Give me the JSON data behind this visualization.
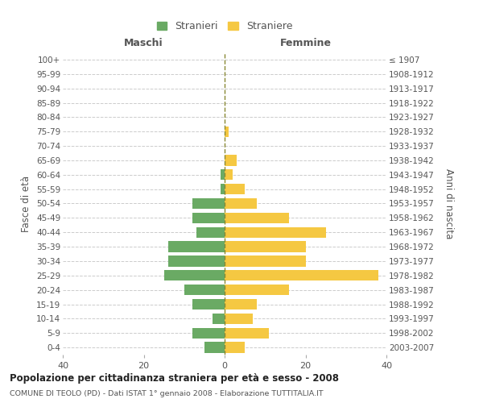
{
  "age_groups": [
    "100+",
    "95-99",
    "90-94",
    "85-89",
    "80-84",
    "75-79",
    "70-74",
    "65-69",
    "60-64",
    "55-59",
    "50-54",
    "45-49",
    "40-44",
    "35-39",
    "30-34",
    "25-29",
    "20-24",
    "15-19",
    "10-14",
    "5-9",
    "0-4"
  ],
  "birth_years": [
    "≤ 1907",
    "1908-1912",
    "1913-1917",
    "1918-1922",
    "1923-1927",
    "1928-1932",
    "1933-1937",
    "1938-1942",
    "1943-1947",
    "1948-1952",
    "1953-1957",
    "1958-1962",
    "1963-1967",
    "1968-1972",
    "1973-1977",
    "1978-1982",
    "1983-1987",
    "1988-1992",
    "1993-1997",
    "1998-2002",
    "2003-2007"
  ],
  "maschi": [
    0,
    0,
    0,
    0,
    0,
    0,
    0,
    0,
    1,
    1,
    8,
    8,
    7,
    14,
    14,
    15,
    10,
    8,
    3,
    8,
    5
  ],
  "femmine": [
    0,
    0,
    0,
    0,
    0,
    1,
    0,
    3,
    2,
    5,
    8,
    16,
    25,
    20,
    20,
    38,
    16,
    8,
    7,
    11,
    5
  ],
  "color_maschi": "#6aaa64",
  "color_femmine": "#f5c842",
  "title": "Popolazione per cittadinanza straniera per età e sesso - 2008",
  "subtitle": "COMUNE DI TEOLO (PD) - Dati ISTAT 1° gennaio 2008 - Elaborazione TUTTITALIA.IT",
  "ylabel_left": "Fasce di età",
  "ylabel_right": "Anni di nascita",
  "xlabel_maschi": "Maschi",
  "xlabel_femmine": "Femmine",
  "legend_maschi": "Stranieri",
  "legend_femmine": "Straniere",
  "xlim": 40,
  "bg_color": "#ffffff",
  "grid_color": "#cccccc"
}
